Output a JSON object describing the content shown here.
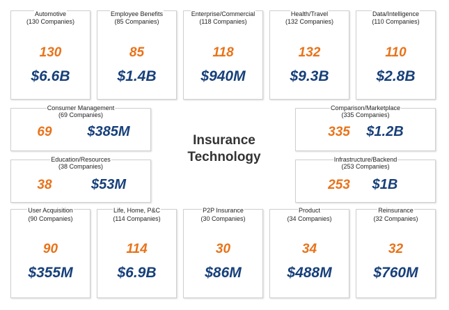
{
  "title_line1": "Insurance",
  "title_line2": "Technology",
  "colors": {
    "count": "#E8731A",
    "funding": "#17407A"
  },
  "top_row": [
    {
      "name": "Automotive",
      "companies": "(130 Companies)",
      "count": "130",
      "funding": "$6.6B"
    },
    {
      "name": "Employee Benefits",
      "companies": "(85 Companies)",
      "count": "85",
      "funding": "$1.4B"
    },
    {
      "name": "Enterprise/Commercial",
      "companies": "(118 Companies)",
      "count": "118",
      "funding": "$940M"
    },
    {
      "name": "Health/Travel",
      "companies": "(132 Companies)",
      "count": "132",
      "funding": "$9.3B"
    },
    {
      "name": "Data/Intelligence",
      "companies": "(110 Companies)",
      "count": "110",
      "funding": "$2.8B"
    }
  ],
  "middle_left": [
    {
      "name": "Consumer Management",
      "companies": "(69 Companies)",
      "count": "69",
      "funding": "$385M"
    },
    {
      "name": "Education/Resources",
      "companies": "(38 Companies)",
      "count": "38",
      "funding": "$53M"
    }
  ],
  "middle_right": [
    {
      "name": "Comparison/Marketplace",
      "companies": "(335 Companies)",
      "count": "335",
      "funding": "$1.2B"
    },
    {
      "name": "Infrastructure/Backend",
      "companies": "(253 Companies)",
      "count": "253",
      "funding": "$1B"
    }
  ],
  "bottom_row": [
    {
      "name": "User Acquisition",
      "companies": "(90 Companies)",
      "count": "90",
      "funding": "$355M"
    },
    {
      "name": "Life, Home, P&C",
      "companies": "(114 Companies)",
      "count": "114",
      "funding": "$6.9B"
    },
    {
      "name": "P2P Insurance",
      "companies": "(30 Companies)",
      "count": "30",
      "funding": "$86M"
    },
    {
      "name": "Product",
      "companies": "(34 Companies)",
      "count": "34",
      "funding": "$488M"
    },
    {
      "name": "Reinsurance",
      "companies": "(32 Companies)",
      "count": "32",
      "funding": "$760M"
    }
  ]
}
